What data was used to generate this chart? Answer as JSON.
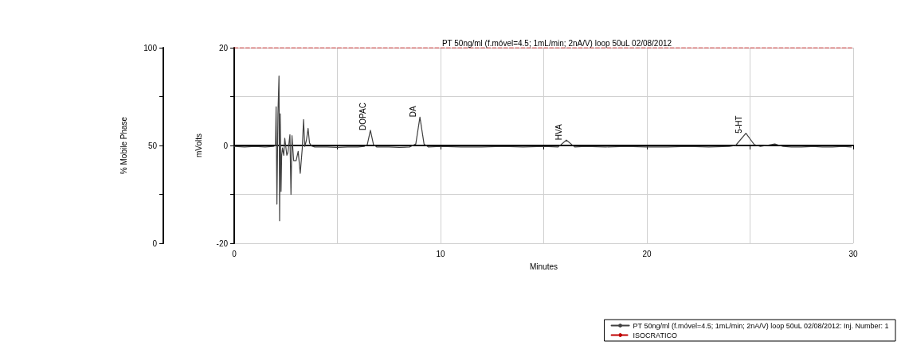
{
  "chart_data": {
    "type": "line",
    "title": "PT 50ng/ml (f.móvel=4.5; 1mL/min; 2nA/V) loop 50uL 02/08/2012",
    "xlabel": "Minutes",
    "ylabel": "mVolts",
    "y2label": "% Mobile Phase",
    "xlim": [
      0,
      30
    ],
    "xticks": [
      0,
      {
        "value": 5,
        "label": null
      },
      10,
      {
        "value": 15,
        "label": null
      },
      20,
      {
        "value": 25,
        "label": null
      },
      30
    ],
    "ylim": [
      -20,
      20
    ],
    "yticks": [
      -20,
      {
        "value": -10,
        "label": null
      },
      0,
      {
        "value": 10,
        "label": null
      },
      20
    ],
    "y2lim": [
      0,
      100
    ],
    "y2ticks": [
      0,
      {
        "value": 25,
        "label": null
      },
      50,
      {
        "value": 75,
        "label": null
      },
      100
    ],
    "grid": true,
    "legend": "bottom right",
    "marker": "none",
    "series": [
      {
        "name": "PT 50ng/ml (f.móvel=4.5; 1mL/min; 2nA/V) loop 50uL 02/08/2012: Inj. Number: 1",
        "color": "#404040",
        "line_style": "solid",
        "x": [
          0,
          0.5,
          1,
          1.5,
          1.9,
          2.0,
          2.03,
          2.07,
          2.12,
          2.17,
          2.2,
          2.23,
          2.27,
          2.3,
          2.34,
          2.4,
          2.45,
          2.55,
          2.6,
          2.7,
          2.75,
          2.8,
          2.88,
          3.0,
          3.1,
          3.2,
          3.3,
          3.36,
          3.42,
          3.5,
          3.58,
          3.65,
          3.75,
          3.9,
          4.5,
          5,
          5.5,
          6,
          6.3,
          6.45,
          6.6,
          6.75,
          6.9,
          7.5,
          8,
          8.5,
          8.8,
          9.0,
          9.2,
          9.4,
          10,
          11,
          12,
          13,
          14,
          15,
          15.7,
          16.1,
          16.5,
          17,
          18,
          19,
          20,
          21,
          22,
          23,
          24,
          24.3,
          24.8,
          25.2,
          25.5,
          26.2,
          26.6,
          27,
          27.5,
          28,
          28.5,
          29,
          29.5,
          29.9
        ],
        "values": [
          -0.2,
          -0.3,
          -0.2,
          -0.3,
          -0.2,
          0,
          7.9,
          -12.0,
          6.5,
          14.2,
          -15.4,
          6.5,
          -9.4,
          -2,
          -0.5,
          -2,
          1.5,
          -2,
          -1.5,
          2.2,
          -10,
          2.0,
          -3.1,
          -3.1,
          -1.2,
          -5.7,
          -0.5,
          5.3,
          -0.2,
          1.1,
          3.5,
          0.5,
          -0.1,
          -0.3,
          -0.3,
          -0.4,
          -0.3,
          -0.3,
          -0.2,
          0.2,
          3.1,
          0.2,
          -0.3,
          -0.3,
          -0.4,
          -0.3,
          0.3,
          5.8,
          0.3,
          -0.3,
          -0.2,
          -0.3,
          -0.3,
          -0.2,
          -0.3,
          -0.2,
          -0.3,
          1.1,
          -0.3,
          -0.2,
          -0.3,
          -0.2,
          -0.3,
          -0.3,
          -0.2,
          -0.3,
          -0.2,
          0,
          2.5,
          0.2,
          -0.2,
          0.3,
          -0.2,
          -0.3,
          -0.3,
          -0.2,
          -0.3,
          -0.3,
          -0.2,
          -0.3
        ]
      },
      {
        "name": "ISOCRATICO",
        "color": "#c00000",
        "line_style": "dashed",
        "axis": "y2",
        "x": [
          0,
          30
        ],
        "values": [
          100,
          100
        ]
      }
    ],
    "annotations": [
      {
        "text": "DOPAC",
        "x": 6.6,
        "y": 3.1
      },
      {
        "text": "DA",
        "x": 9.0,
        "y": 5.8
      },
      {
        "text": "HVA",
        "x": 16.1,
        "y": 1.1
      },
      {
        "text": "5-HT",
        "x": 24.8,
        "y": 2.5
      }
    ]
  }
}
